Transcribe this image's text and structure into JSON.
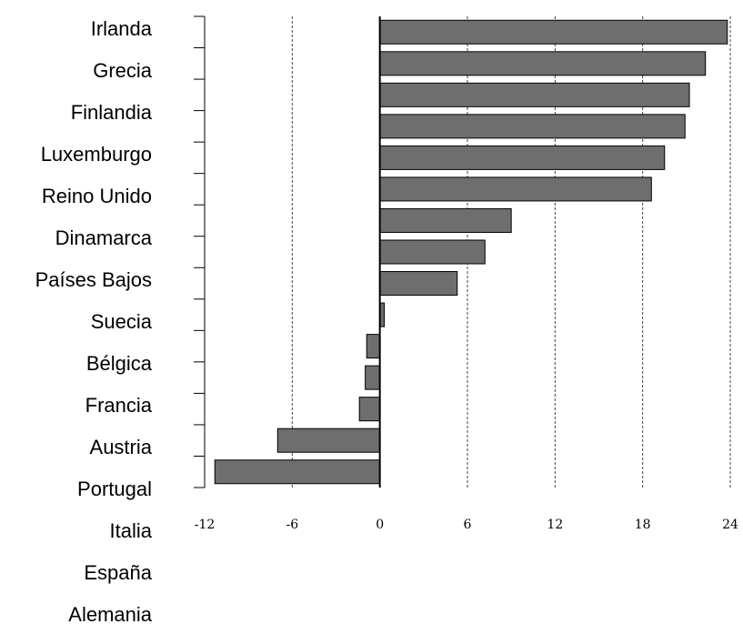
{
  "chart_data": {
    "type": "bar",
    "orientation": "horizontal",
    "categories": [
      "Irlanda",
      "Grecia",
      "Finlandia",
      "Luxemburgo",
      "Reino Unido",
      "Dinamarca",
      "Países Bajos",
      "Suecia",
      "Bélgica",
      "Francia",
      "Austria",
      "Portugal",
      "Italia",
      "España",
      "Alemania"
    ],
    "values": [
      23.8,
      22.3,
      21.2,
      20.9,
      19.5,
      18.6,
      9.0,
      7.2,
      5.3,
      0.3,
      -0.9,
      -1.0,
      -1.4,
      -7.0,
      -11.3
    ],
    "xlim": [
      -12,
      24
    ],
    "xticks": [
      "-12",
      "-6",
      "0",
      "6",
      "12",
      "18",
      "24"
    ],
    "title": "",
    "xlabel": "",
    "ylabel": "",
    "grid": "vertical dashed",
    "colors": {
      "bar": "#6e6e6e",
      "bar_border": "#000000",
      "grid": "#444444"
    }
  }
}
